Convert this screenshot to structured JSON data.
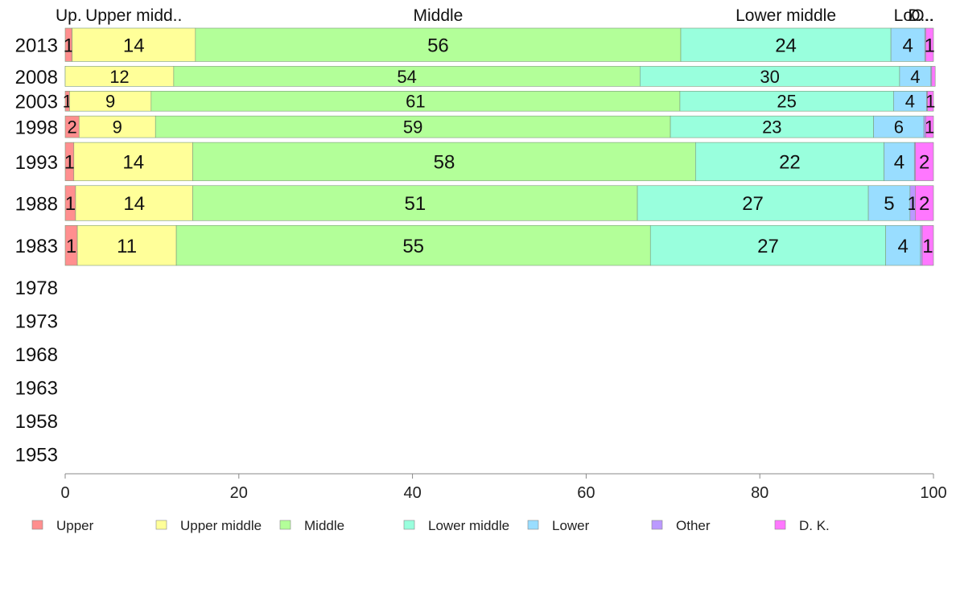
{
  "chart_data": {
    "type": "bar",
    "orientation": "horizontal",
    "stacked": true,
    "title": "",
    "xlabel": "",
    "ylabel": "",
    "xlim": [
      0,
      100
    ],
    "x_ticks": [
      "0",
      "20",
      "40",
      "60",
      "80",
      "100"
    ],
    "grid": false,
    "legend_position": "bottom",
    "categories": [
      "2013",
      "2008",
      "2003",
      "1998",
      "1993",
      "1988",
      "1983",
      "1978",
      "1973",
      "1968",
      "1963",
      "1958",
      "1953"
    ],
    "category_weights": [
      1,
      0.6,
      0.6,
      0.65,
      1.15,
      1.05,
      1.2,
      0,
      0,
      0,
      0,
      0,
      0
    ],
    "top_labels": [
      "Up.",
      "Upper midd..",
      "Middle",
      "Lower middle",
      "Lo..",
      "O..",
      "D..."
    ],
    "series": [
      {
        "name": "Upper",
        "color": "#ff8f8f",
        "values": [
          0.8,
          0,
          0.5,
          1.6,
          1,
          1.2,
          1.4,
          null,
          null,
          null,
          null,
          null,
          null
        ],
        "labels": [
          "1",
          "",
          "1",
          "2",
          "1",
          "1",
          "1",
          "",
          "",
          "",
          "",
          "",
          ""
        ]
      },
      {
        "name": "Upper middle",
        "color": "#ffff99",
        "values": [
          14.2,
          12.5,
          9.4,
          8.8,
          13.7,
          13.5,
          11.4,
          null,
          null,
          null,
          null,
          null,
          null
        ],
        "labels": [
          "14",
          "12",
          "9",
          "9",
          "14",
          "14",
          "11",
          "",
          "",
          "",
          "",
          "",
          ""
        ]
      },
      {
        "name": "Middle",
        "color": "#b3ff99",
        "values": [
          55.9,
          53.7,
          60.9,
          59.3,
          57.9,
          51.2,
          54.6,
          null,
          null,
          null,
          null,
          null,
          null
        ],
        "labels": [
          "56",
          "54",
          "61",
          "59",
          "58",
          "51",
          "55",
          "",
          "",
          "",
          "",
          "",
          ""
        ]
      },
      {
        "name": "Lower middle",
        "color": "#99ffdd",
        "values": [
          24.2,
          29.9,
          24.6,
          23.4,
          21.7,
          26.6,
          27.1,
          null,
          null,
          null,
          null,
          null,
          null
        ],
        "labels": [
          "24",
          "30",
          "25",
          "23",
          "22",
          "27",
          "27",
          "",
          "",
          "",
          "",
          "",
          ""
        ]
      },
      {
        "name": "Lower",
        "color": "#99ddff",
        "values": [
          3.9,
          3.6,
          3.8,
          5.8,
          3.5,
          4.8,
          4.0,
          null,
          null,
          null,
          null,
          null,
          null
        ],
        "labels": [
          "4",
          "4",
          "4",
          "6",
          "4",
          "5",
          "4",
          "",
          "",
          "",
          "",
          "",
          ""
        ]
      },
      {
        "name": "Other",
        "color": "#bb99ff",
        "values": [
          0.1,
          0.1,
          0.1,
          0.2,
          0.1,
          0.6,
          0.2,
          null,
          null,
          null,
          null,
          null,
          null
        ],
        "labels": [
          "",
          "",
          "",
          "",
          "",
          "1",
          "",
          "",
          "",
          "",
          "",
          "",
          ""
        ]
      },
      {
        "name": "D. K.",
        "color": "#ff77ff",
        "values": [
          0.9,
          0.4,
          0.7,
          0.9,
          2.1,
          2.1,
          1.3,
          null,
          null,
          null,
          null,
          null,
          null
        ],
        "labels": [
          "1",
          "",
          "1",
          "1",
          "2",
          "2",
          "1",
          "",
          "",
          "",
          "",
          "",
          ""
        ]
      }
    ],
    "legend_labels": [
      "Upper",
      "Upper middle",
      "Middle",
      "Lower middle",
      "Lower",
      "Other",
      "D. K."
    ]
  }
}
